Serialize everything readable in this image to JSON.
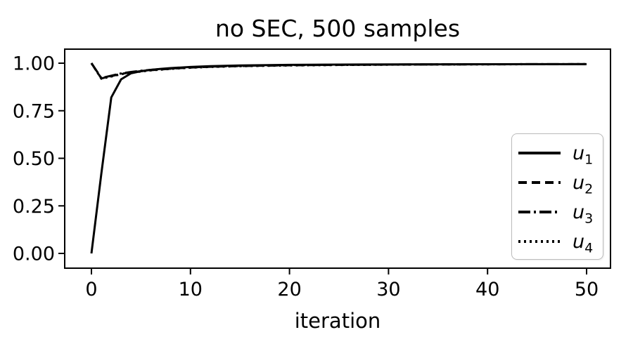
{
  "chart_data": {
    "type": "line",
    "title": "no SEC, 500 samples",
    "xlabel": "iteration",
    "ylabel": "",
    "grid": false,
    "legend_position": "center right",
    "xlim": [
      -2.7,
      52.3
    ],
    "ylim": [
      -0.078,
      1.074
    ],
    "x_ticks": [
      0,
      10,
      20,
      30,
      40,
      50
    ],
    "y_ticks": [
      {
        "value": 0.0,
        "label": "0.00"
      },
      {
        "value": 0.25,
        "label": "0.25"
      },
      {
        "value": 0.5,
        "label": "0.50"
      },
      {
        "value": 0.75,
        "label": "0.75"
      },
      {
        "value": 1.0,
        "label": "1.00"
      }
    ],
    "x": [
      0,
      1,
      2,
      3,
      4,
      5,
      6,
      7,
      8,
      9,
      10,
      12,
      15,
      20,
      25,
      30,
      35,
      40,
      45,
      50
    ],
    "series": [
      {
        "name": "u1",
        "legend_base": "u",
        "legend_sub": "1",
        "linestyle": "solid",
        "color": "#000000",
        "y": [
          0.0,
          0.42,
          0.82,
          0.915,
          0.947,
          0.958,
          0.965,
          0.97,
          0.974,
          0.977,
          0.98,
          0.984,
          0.988,
          0.991,
          0.9925,
          0.9935,
          0.994,
          0.9945,
          0.995,
          0.995
        ]
      },
      {
        "name": "u2",
        "legend_base": "u",
        "legend_sub": "2",
        "linestyle": "dashed",
        "color": "#000000",
        "y": [
          1.0,
          0.92,
          0.932,
          0.944,
          0.952,
          0.958,
          0.963,
          0.967,
          0.971,
          0.974,
          0.977,
          0.981,
          0.985,
          0.989,
          0.991,
          0.9925,
          0.9935,
          0.994,
          0.9945,
          0.995
        ]
      },
      {
        "name": "u3",
        "legend_base": "u",
        "legend_sub": "3",
        "linestyle": "dashdot",
        "color": "#000000",
        "y": [
          1.0,
          0.922,
          0.934,
          0.946,
          0.954,
          0.96,
          0.965,
          0.969,
          0.972,
          0.975,
          0.978,
          0.982,
          0.986,
          0.99,
          0.9915,
          0.9928,
          0.9937,
          0.9943,
          0.9947,
          0.995
        ]
      },
      {
        "name": "u4",
        "legend_base": "u",
        "legend_sub": "4",
        "linestyle": "dotted",
        "color": "#000000",
        "y": [
          1.0,
          0.918,
          0.93,
          0.942,
          0.95,
          0.956,
          0.962,
          0.966,
          0.97,
          0.973,
          0.976,
          0.98,
          0.984,
          0.988,
          0.9905,
          0.992,
          0.993,
          0.9938,
          0.9944,
          0.995
        ]
      }
    ]
  },
  "colors": {
    "line": "#000000",
    "text": "#000000",
    "axis": "#000000",
    "legend_border": "#bbbbbb",
    "legend_background": "#ffffff",
    "figure_background": "#ffffff"
  }
}
